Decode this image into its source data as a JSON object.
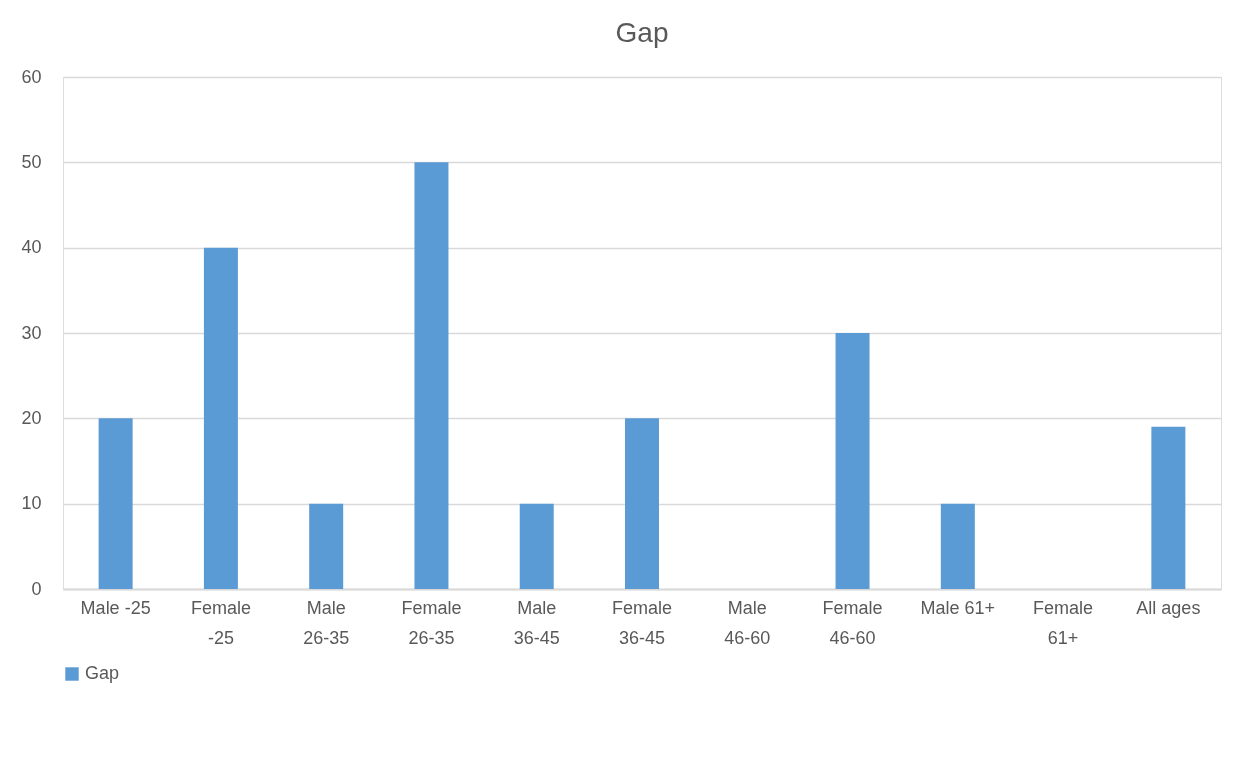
{
  "chart_data": {
    "type": "bar",
    "title": "Gap",
    "categories": [
      "Male -25",
      "Female -25",
      "Male 26-35",
      "Female 26-35",
      "Male 36-45",
      "Female 36-45",
      "Male 46-60",
      "Female 46-60",
      "Male 61+",
      "Female 61+",
      "All ages"
    ],
    "series": [
      {
        "name": "Gap",
        "color": "#5b9bd5",
        "values": [
          20,
          40,
          10,
          50,
          10,
          20,
          0,
          30,
          10,
          0,
          19
        ]
      }
    ],
    "ylim": [
      0,
      60
    ],
    "yticks": [
      0,
      10,
      20,
      30,
      40,
      50,
      60
    ],
    "grid": "y",
    "legend": "bottom"
  }
}
